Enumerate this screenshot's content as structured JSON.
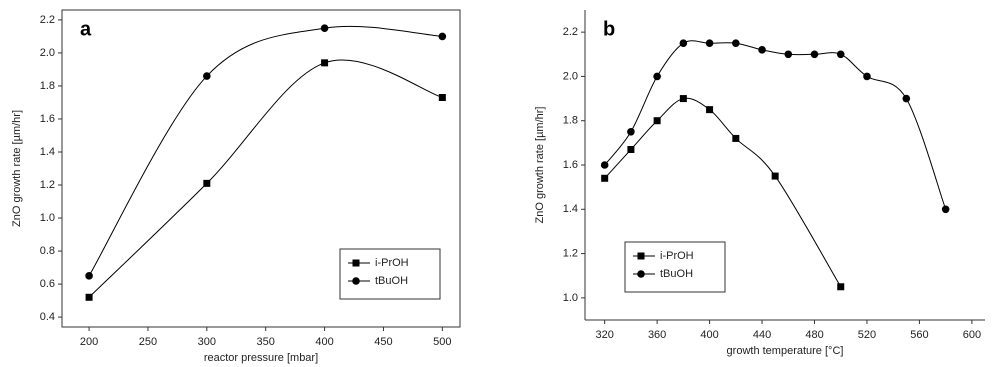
{
  "chart_data": [
    {
      "type": "line",
      "panel": "a",
      "x_label": "reactor pressure [mbar]",
      "y_label": "ZnO growth rate [µm/hr]",
      "xlim": [
        177,
        515
      ],
      "xticks": [
        200,
        250,
        300,
        350,
        400,
        450,
        500
      ],
      "ylim": [
        0.34,
        2.26
      ],
      "yticks": [
        0.4,
        0.6,
        0.8,
        {
          "value": 1.0,
          "label": "1.0"
        },
        1.2,
        1.4,
        1.6,
        1.8,
        {
          "value": 2.0,
          "label": "2.0"
        },
        2.2
      ],
      "frame": true,
      "legend_position": "lower right",
      "series": [
        {
          "name": "i-PrOH",
          "color": "#000000",
          "marker": "square",
          "x": [
            200,
            300,
            400,
            500
          ],
          "values": [
            0.52,
            1.21,
            1.94,
            1.73
          ]
        },
        {
          "name": "tBuOH",
          "color": "#000000",
          "marker": "circle",
          "x": [
            200,
            300,
            400,
            500
          ],
          "values": [
            0.65,
            1.86,
            2.15,
            2.1
          ]
        }
      ]
    },
    {
      "type": "line",
      "panel": "b",
      "x_label": "growth temperature [°C]",
      "y_label": "ZnO growth rate [µm/hr]",
      "xlim": [
        305,
        610
      ],
      "xticks": [
        320,
        360,
        400,
        440,
        480,
        520,
        560,
        600
      ],
      "ylim": [
        0.9,
        2.3
      ],
      "yticks": [
        {
          "value": 1.0,
          "label": "1.0"
        },
        1.2,
        1.4,
        1.6,
        1.8,
        {
          "value": 2.0,
          "label": "2.0"
        },
        2.2
      ],
      "frame": false,
      "legend_position": "lower left",
      "series": [
        {
          "name": "i-PrOH",
          "color": "#000000",
          "marker": "square",
          "x": [
            320,
            340,
            360,
            380,
            400,
            420,
            450,
            500
          ],
          "values": [
            1.54,
            1.67,
            1.8,
            1.9,
            1.85,
            1.72,
            1.55,
            1.05
          ]
        },
        {
          "name": "tBuOH",
          "color": "#000000",
          "marker": "circle",
          "x": [
            320,
            340,
            360,
            380,
            400,
            420,
            440,
            460,
            480,
            500,
            520,
            550,
            580
          ],
          "values": [
            1.6,
            1.75,
            2.0,
            2.15,
            2.15,
            2.15,
            2.12,
            2.1,
            2.1,
            2.1,
            2.0,
            1.9,
            1.4
          ]
        }
      ]
    }
  ]
}
